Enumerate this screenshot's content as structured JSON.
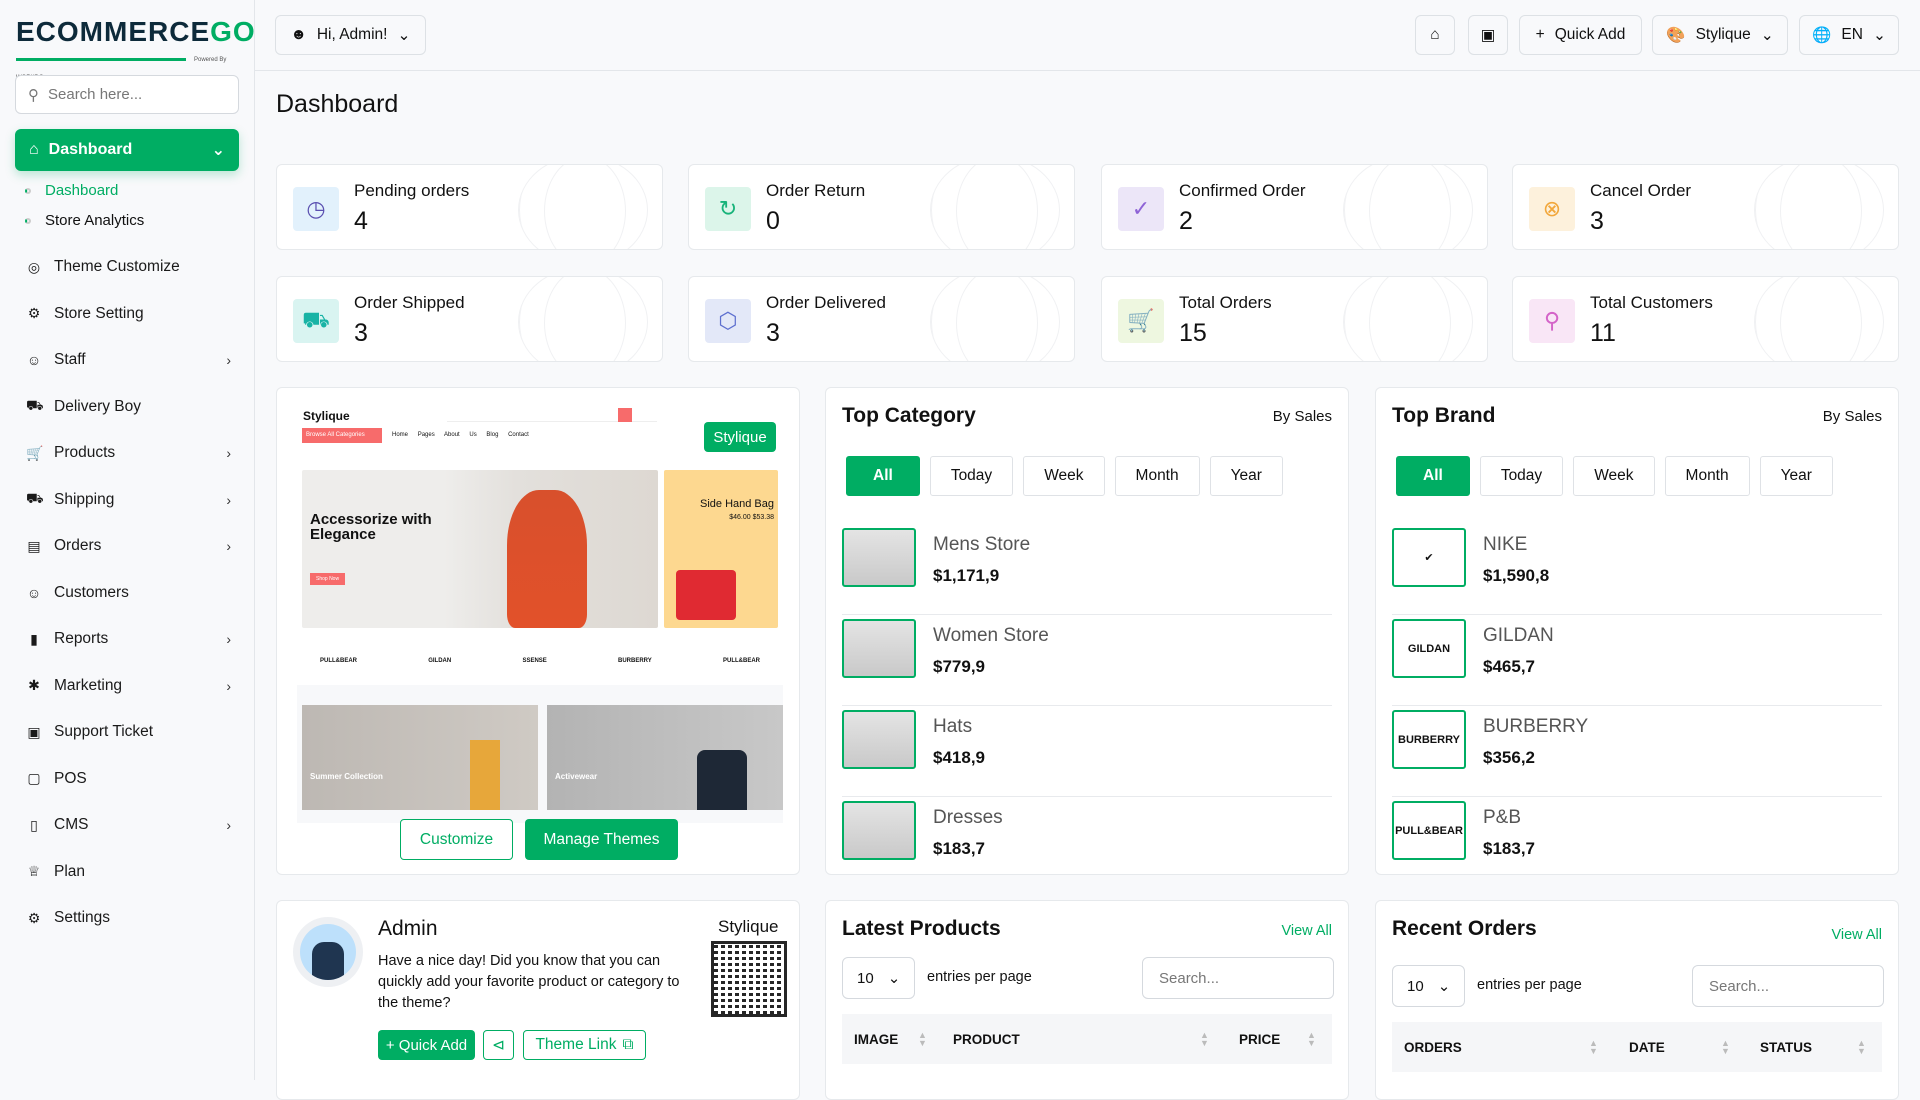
{
  "brand": {
    "name_a": "ECOMMERCE",
    "name_b": "GO",
    "powered": "Powered By WORKDO"
  },
  "sidebar": {
    "search_placeholder": "Search here...",
    "active": "Dashboard",
    "sub_items": [
      "Dashboard",
      "Store Analytics"
    ],
    "items": [
      {
        "label": "Theme Customize",
        "icon": "theme-icon",
        "has_children": false
      },
      {
        "label": "Store Setting",
        "icon": "gear-icon",
        "has_children": false
      },
      {
        "label": "Staff",
        "icon": "users-icon",
        "has_children": true
      },
      {
        "label": "Delivery Boy",
        "icon": "truck-icon",
        "has_children": false
      },
      {
        "label": "Products",
        "icon": "cart-icon",
        "has_children": true
      },
      {
        "label": "Shipping",
        "icon": "shipping-icon",
        "has_children": true
      },
      {
        "label": "Orders",
        "icon": "box-icon",
        "has_children": true
      },
      {
        "label": "Customers",
        "icon": "user-icon",
        "has_children": false
      },
      {
        "label": "Reports",
        "icon": "chart-icon",
        "has_children": true
      },
      {
        "label": "Marketing",
        "icon": "marketing-icon",
        "has_children": true
      },
      {
        "label": "Support Ticket",
        "icon": "ticket-icon",
        "has_children": false
      },
      {
        "label": "POS",
        "icon": "pos-icon",
        "has_children": false
      },
      {
        "label": "CMS",
        "icon": "cms-icon",
        "has_children": true
      },
      {
        "label": "Plan",
        "icon": "trophy-icon",
        "has_children": false
      },
      {
        "label": "Settings",
        "icon": "settings-icon",
        "has_children": false
      }
    ]
  },
  "header": {
    "user_menu": "Hi, Admin!",
    "quick_add": "Quick Add",
    "theme": "Stylique",
    "language": "EN"
  },
  "page_title": "Dashboard",
  "stats": [
    {
      "label": "Pending orders",
      "value": "4",
      "icon": "clock-icon",
      "color": "#5a4fb0",
      "bg": "#e2f1fc"
    },
    {
      "label": "Order Return",
      "value": "0",
      "icon": "return-icon",
      "color": "#18b37a",
      "bg": "#dcf5ea"
    },
    {
      "label": "Confirmed Order",
      "value": "2",
      "icon": "check-circle-icon",
      "color": "#8e63d6",
      "bg": "#ece6f8"
    },
    {
      "label": "Cancel Order",
      "value": "3",
      "icon": "x-circle-icon",
      "color": "#f2a73b",
      "bg": "#fdf1dc"
    },
    {
      "label": "Order Shipped",
      "value": "3",
      "icon": "truck-icon",
      "color": "#18b3a5",
      "bg": "#d9f4f1"
    },
    {
      "label": "Order Delivered",
      "value": "3",
      "icon": "package-icon",
      "color": "#5d6fcf",
      "bg": "#e3e8f8"
    },
    {
      "label": "Total Orders",
      "value": "15",
      "icon": "cart-icon",
      "color": "#8dc63f",
      "bg": "#eef7e0"
    },
    {
      "label": "Total Customers",
      "value": "11",
      "icon": "user-plus-icon",
      "color": "#d463c8",
      "bg": "#f9e6f6"
    }
  ],
  "theme_panel": {
    "badge": "Stylique",
    "preview": {
      "logo": "Stylique",
      "nav": [
        "Home",
        "Pages",
        "About Us",
        "Blog",
        "Contact"
      ],
      "browse": "Browse All Categories",
      "hero_title": "Accessorize with Elegance",
      "hero_btn": "Shop Now",
      "side_title": "Side Hand Bag",
      "side_price": "$46.00",
      "side_old": "$53.38",
      "brands": [
        "PULL&BEAR",
        "GILDAN",
        "SSENSE",
        "BURBERRY",
        "PULL&BEAR"
      ],
      "card1": "Summer Collection",
      "card2": "Activewear"
    },
    "customize": "Customize",
    "manage": "Manage Themes"
  },
  "filters": [
    "All",
    "Today",
    "Week",
    "Month",
    "Year"
  ],
  "top_category": {
    "title": "Top Category",
    "by": "By Sales",
    "items": [
      {
        "name": "Mens Store",
        "price": "$1,171,9"
      },
      {
        "name": "Women Store",
        "price": "$779,9"
      },
      {
        "name": "Hats",
        "price": "$418,9"
      },
      {
        "name": "Dresses",
        "price": "$183,7"
      }
    ]
  },
  "top_brand": {
    "title": "Top Brand",
    "by": "By Sales",
    "items": [
      {
        "name": "NIKE",
        "price": "$1,590,8",
        "logo": "✔"
      },
      {
        "name": "GILDAN",
        "price": "$465,7",
        "logo": "GILDAN"
      },
      {
        "name": "BURBERRY",
        "price": "$356,2",
        "logo": "BURBERRY"
      },
      {
        "name": "P&B",
        "price": "$183,7",
        "logo": "PULL&BEAR"
      }
    ]
  },
  "admin_card": {
    "name": "Admin",
    "store": "Stylique",
    "message": "Have a nice day! Did you know that you can quickly add your favorite product or category to the theme?",
    "quick_add": "+ Quick Add",
    "theme_link": "Theme Link"
  },
  "latest_products": {
    "title": "Latest Products",
    "view_all": "View All",
    "entries": "10",
    "entries_label": "entries per page",
    "search_placeholder": "Search...",
    "columns": [
      "IMAGE",
      "PRODUCT",
      "PRICE"
    ]
  },
  "recent_orders": {
    "title": "Recent Orders",
    "view_all": "View All",
    "entries": "10",
    "entries_label": "entries per page",
    "search_placeholder": "Search...",
    "columns": [
      "ORDERS",
      "DATE",
      "STATUS"
    ]
  }
}
